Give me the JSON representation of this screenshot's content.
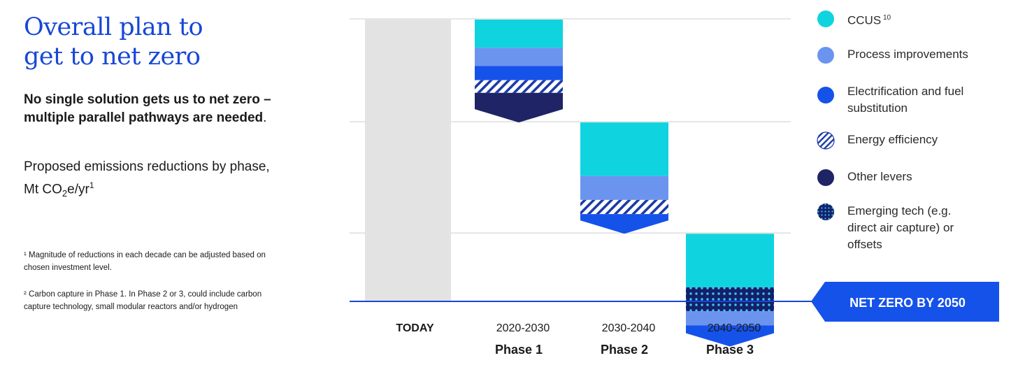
{
  "title": {
    "line1": "Overall plan to",
    "line2": "get to net zero"
  },
  "subtitle": {
    "bold": "No single solution gets us to net zero – multiple parallel pathways are needed",
    "tail": "."
  },
  "measure": {
    "pre": "Proposed emissions reductions by phase, Mt CO",
    "sub": "2",
    "post": "e/yr",
    "sup": "1"
  },
  "footnotes": [
    "¹ Magnitude of reductions in each decade can be adjusted based on chosen investment level.",
    "² Carbon capture in Phase 1. In Phase 2 or 3, could include carbon capture technology, small modular reactors and/or hydrogen"
  ],
  "colors": {
    "ccus": "#0fd4e0",
    "process": "#6b94ef",
    "electrification": "#1552ea",
    "efficiency": "#1a3aa8",
    "other": "#1f2466",
    "emerging": "#13206a",
    "today": "#e3e3e3",
    "baseline": "#1747d6",
    "grid": "#dddddd",
    "badge": "#1552ea"
  },
  "legend": [
    {
      "key": "ccus",
      "icon": "circle-icon",
      "label": "CCUS",
      "sup": "10"
    },
    {
      "key": "process",
      "icon": "circle-icon",
      "label": "Process improvements",
      "sup": ""
    },
    {
      "key": "electrification",
      "icon": "circle-icon",
      "label": "Electrification and fuel substitution",
      "sup": ""
    },
    {
      "key": "efficiency",
      "icon": "hatched-circle-icon",
      "label": "Energy efficiency",
      "sup": ""
    },
    {
      "key": "other",
      "icon": "circle-icon",
      "label": "Other levers",
      "sup": ""
    },
    {
      "key": "emerging",
      "icon": "dotted-circle-icon",
      "label": "Emerging tech (e.g. direct air capture) or offsets",
      "sup": ""
    }
  ],
  "badge": {
    "label": "NET ZERO BY 2050"
  },
  "chart_data": {
    "type": "bar",
    "subtype": "waterfall",
    "grid": true,
    "legend_position": "right",
    "categories": [
      "TODAY",
      "2020-2030",
      "2030-2040",
      "2040-2050"
    ],
    "phase_labels": [
      "",
      "Phase 1",
      "Phase 2",
      "Phase 3"
    ],
    "ylim": [
      0,
      100
    ],
    "today_value": 100,
    "steps": [
      {
        "category": "2020-2030",
        "segments": [
          {
            "lever": "ccus",
            "value": 10
          },
          {
            "lever": "process",
            "value": 6.5
          },
          {
            "lever": "electrification",
            "value": 5
          },
          {
            "lever": "efficiency",
            "value": 4.5
          },
          {
            "lever": "other",
            "value": 10.5
          }
        ]
      },
      {
        "category": "2030-2040",
        "segments": [
          {
            "lever": "ccus",
            "value": 19
          },
          {
            "lever": "process",
            "value": 8.5
          },
          {
            "lever": "efficiency",
            "value": 5
          },
          {
            "lever": "electrification",
            "value": 7
          }
        ]
      },
      {
        "category": "2040-2050",
        "segments": [
          {
            "lever": "ccus",
            "value": 19
          },
          {
            "lever": "emerging",
            "value": 8.5
          },
          {
            "lever": "process",
            "value": 5
          },
          {
            "lever": "electrification",
            "value": 7.5
          }
        ]
      }
    ]
  }
}
